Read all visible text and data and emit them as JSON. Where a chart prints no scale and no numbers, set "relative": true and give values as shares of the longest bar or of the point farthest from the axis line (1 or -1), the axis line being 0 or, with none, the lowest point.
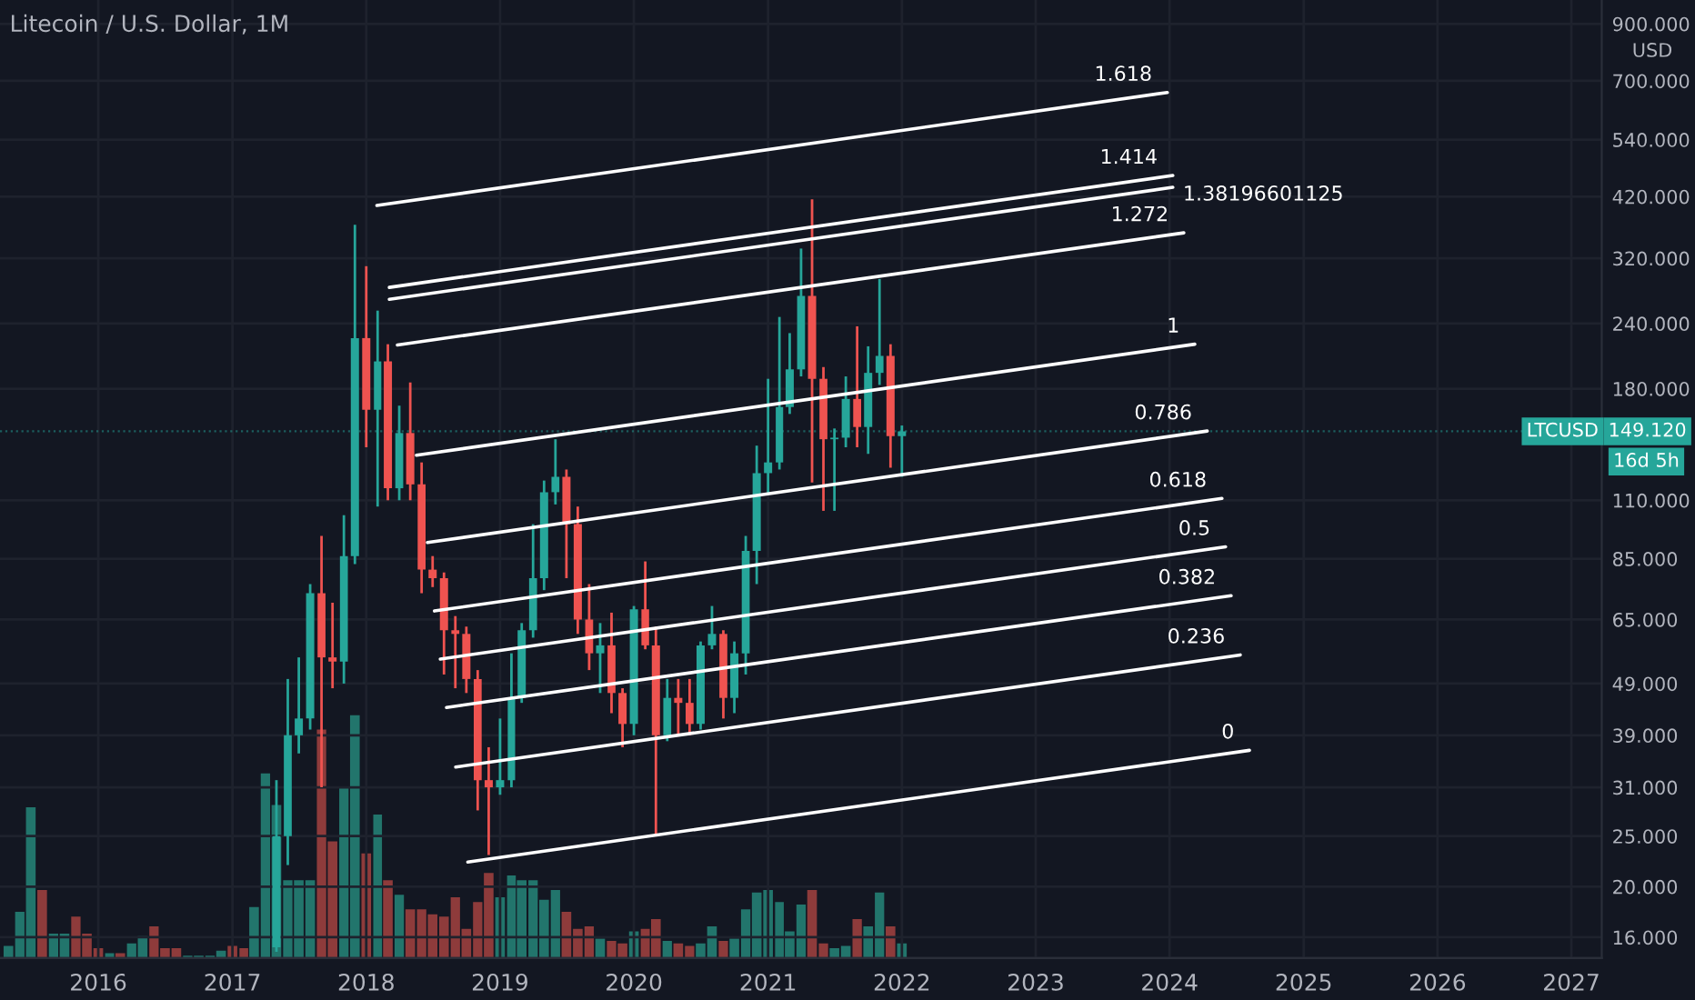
{
  "chart_data": [
    {
      "type": "candlestick",
      "title": "Litecoin / U.S. Dollar, 1M",
      "ylabel": "USD",
      "log": "y",
      "grid": true,
      "x": [
        "2017-05",
        "2017-06",
        "2017-07",
        "2017-08",
        "2017-09",
        "2017-10",
        "2017-11",
        "2017-12",
        "2018-01",
        "2018-02",
        "2018-03",
        "2018-04",
        "2018-05",
        "2018-06",
        "2018-07",
        "2018-08",
        "2018-09",
        "2018-10",
        "2018-11",
        "2018-12",
        "2019-01",
        "2019-02",
        "2019-03",
        "2019-04",
        "2019-05",
        "2019-06",
        "2019-07",
        "2019-08",
        "2019-09",
        "2019-10",
        "2019-11",
        "2019-12",
        "2020-01",
        "2020-02",
        "2020-03",
        "2020-04",
        "2020-05",
        "2020-06",
        "2020-07",
        "2020-08",
        "2020-09",
        "2020-10",
        "2020-11",
        "2020-12",
        "2021-01",
        "2021-02",
        "2021-03",
        "2021-04",
        "2021-05",
        "2021-06",
        "2021-07",
        "2021-08",
        "2021-09",
        "2021-10",
        "2021-11",
        "2021-12",
        "2022-01"
      ],
      "ohlc": [
        [
          15.3,
          32,
          15,
          25
        ],
        [
          25,
          50,
          22,
          39
        ],
        [
          39,
          55,
          36,
          42
        ],
        [
          42,
          76,
          40,
          73
        ],
        [
          73,
          94,
          31,
          55
        ],
        [
          55,
          70,
          48,
          54
        ],
        [
          54,
          103,
          49,
          86
        ],
        [
          86,
          371,
          83,
          225
        ],
        [
          225,
          309,
          139,
          164
        ],
        [
          164,
          254,
          107,
          203
        ],
        [
          203,
          219,
          110,
          116
        ],
        [
          116,
          167,
          110,
          148
        ],
        [
          148,
          185,
          110,
          118
        ],
        [
          118,
          130,
          73,
          81
        ],
        [
          81,
          86,
          75,
          78
        ],
        [
          78,
          80,
          51,
          62
        ],
        [
          62,
          66,
          48,
          61
        ],
        [
          61,
          63,
          47,
          50
        ],
        [
          50,
          52,
          28,
          32
        ],
        [
          32,
          37,
          23,
          31
        ],
        [
          31,
          42,
          30,
          32
        ],
        [
          32,
          56,
          31,
          46
        ],
        [
          46,
          64,
          45,
          62
        ],
        [
          62,
          99,
          60,
          78
        ],
        [
          78,
          120,
          74,
          114
        ],
        [
          114,
          144,
          108,
          122
        ],
        [
          122,
          126,
          78,
          99
        ],
        [
          99,
          107,
          61,
          65
        ],
        [
          65,
          76,
          52,
          56
        ],
        [
          56,
          64,
          47,
          58
        ],
        [
          58,
          67,
          43,
          47
        ],
        [
          47,
          48,
          37,
          41
        ],
        [
          41,
          69,
          39,
          68
        ],
        [
          68,
          84,
          57,
          58
        ],
        [
          58,
          63,
          25,
          39
        ],
        [
          39,
          50,
          38,
          46
        ],
        [
          46,
          50,
          39,
          45
        ],
        [
          45,
          50,
          39,
          41
        ],
        [
          41,
          59,
          40,
          58
        ],
        [
          58,
          69,
          57,
          61
        ],
        [
          61,
          62,
          42,
          46
        ],
        [
          46,
          59,
          43,
          56
        ],
        [
          56,
          94,
          51,
          88
        ],
        [
          88,
          140,
          76,
          124
        ],
        [
          124,
          188,
          113,
          130
        ],
        [
          130,
          247,
          126,
          166
        ],
        [
          166,
          230,
          161,
          196
        ],
        [
          196,
          334,
          190,
          271
        ],
        [
          271,
          415,
          119,
          188
        ],
        [
          188,
          198,
          105,
          144
        ],
        [
          144,
          151,
          105,
          145
        ],
        [
          145,
          190,
          139,
          172
        ],
        [
          172,
          237,
          139,
          152
        ],
        [
          152,
          217,
          135,
          193
        ],
        [
          193,
          292,
          183,
          208
        ],
        [
          208,
          219,
          127,
          146
        ],
        [
          146,
          153,
          122,
          149.12
        ]
      ],
      "colors": [
        "#26a69a",
        "#26a69a",
        "#26a69a",
        "#26a69a",
        "#ef5350",
        "#ef5350",
        "#26a69a",
        "#26a69a",
        "#ef5350",
        "#26a69a",
        "#ef5350",
        "#26a69a",
        "#ef5350",
        "#ef5350",
        "#ef5350",
        "#ef5350",
        "#ef5350",
        "#ef5350",
        "#ef5350",
        "#ef5350",
        "#26a69a",
        "#26a69a",
        "#26a69a",
        "#26a69a",
        "#26a69a",
        "#26a69a",
        "#ef5350",
        "#ef5350",
        "#ef5350",
        "#26a69a",
        "#ef5350",
        "#ef5350",
        "#26a69a",
        "#ef5350",
        "#ef5350",
        "#26a69a",
        "#ef5350",
        "#ef5350",
        "#26a69a",
        "#26a69a",
        "#ef5350",
        "#26a69a",
        "#26a69a",
        "#26a69a",
        "#26a69a",
        "#26a69a",
        "#26a69a",
        "#26a69a",
        "#ef5350",
        "#ef5350",
        "#26a69a",
        "#26a69a",
        "#ef5350",
        "#26a69a",
        "#26a69a",
        "#ef5350",
        "#26a69a"
      ],
      "series": [
        {
          "type": "line",
          "name": "0",
          "color": "#ffffff",
          "x": [
            "2018-10-05",
            "2024-08-06"
          ],
          "values": [
            22.3,
            36.5
          ]
        },
        {
          "type": "line",
          "name": "0.236",
          "color": "#ffffff",
          "x": [
            "2018-09-02",
            "2024-07-12"
          ],
          "values": [
            33.9,
            55.6
          ]
        },
        {
          "type": "line",
          "name": "0.382",
          "color": "#ffffff",
          "x": [
            "2018-08-08",
            "2024-06-17"
          ],
          "values": [
            44.1,
            72.2
          ]
        },
        {
          "type": "line",
          "name": "0.5",
          "color": "#ffffff",
          "x": [
            "2018-07-22",
            "2024-06-02"
          ],
          "values": [
            54.6,
            89.6
          ]
        },
        {
          "type": "line",
          "name": "0.618",
          "color": "#ffffff",
          "x": [
            "2018-07-06",
            "2024-05-23"
          ],
          "values": [
            67.5,
            110.9
          ]
        },
        {
          "type": "line",
          "name": "0.786",
          "color": "#ffffff",
          "x": [
            "2018-06-17",
            "2024-04-13"
          ],
          "values": [
            91.3,
            149.3
          ]
        },
        {
          "type": "line",
          "name": "1",
          "color": "#ffffff",
          "x": [
            "2018-05-18",
            "2024-03-10"
          ],
          "values": [
            134.2,
            219
          ]
        },
        {
          "type": "line",
          "name": "1.272",
          "color": "#ffffff",
          "x": [
            "2018-03-27",
            "2024-02-09"
          ],
          "values": [
            218.3,
            358
          ]
        },
        {
          "type": "line",
          "name": "1.38196601125",
          "color": "#ffffff",
          "x": [
            "2018-03-05",
            "2024-01-10"
          ],
          "values": [
            267,
            437.6
          ]
        },
        {
          "type": "line",
          "name": "1.414",
          "color": "#ffffff",
          "x": [
            "2018-03-05",
            "2024-01-10"
          ],
          "values": [
            281.4,
            461
          ]
        },
        {
          "type": "line",
          "name": "1.618",
          "color": "#ffffff",
          "x": [
            "2018-01-30",
            "2023-12-26"
          ],
          "values": [
            403.9,
            665
          ]
        }
      ],
      "xlim": [
        "2015-04-08",
        "2027-03-25"
      ],
      "xticks": [
        {
          "value": "2016-01-01",
          "label": "2016"
        },
        {
          "value": "2017-01-01",
          "label": "2017"
        },
        {
          "value": "2018-01-01",
          "label": "2018"
        },
        {
          "value": "2019-01-01",
          "label": "2019"
        },
        {
          "value": "2020-01-01",
          "label": "2020"
        },
        {
          "value": "2021-01-01",
          "label": "2021"
        },
        {
          "value": "2022-01-01",
          "label": "2022"
        },
        {
          "value": "2023-01-01",
          "label": "2023"
        },
        {
          "value": "2024-01-01",
          "label": "2024"
        },
        {
          "value": "2025-01-01",
          "label": "2025"
        },
        {
          "value": "2026-01-01",
          "label": "2026"
        },
        {
          "value": "2027-01-01",
          "label": "2027"
        }
      ],
      "ylim": [
        14.6,
        1000
      ],
      "yticks": [
        {
          "value": 16,
          "label": "16.000"
        },
        {
          "value": 20,
          "label": "20.000"
        },
        {
          "value": 25,
          "label": "25.000"
        },
        {
          "value": 31,
          "label": "31.000"
        },
        {
          "value": 39,
          "label": "39.000"
        },
        {
          "value": 49,
          "label": "49.000"
        },
        {
          "value": 65,
          "label": "65.000"
        },
        {
          "value": 85,
          "label": "85.000"
        },
        {
          "value": 110,
          "label": "110.000"
        },
        {
          "value": 180,
          "label": "180.000"
        },
        {
          "value": 240,
          "label": "240.000"
        },
        {
          "value": 320,
          "label": "320.000"
        },
        {
          "value": 420,
          "label": "420.000"
        },
        {
          "value": 540,
          "label": "540.000"
        },
        {
          "value": 700,
          "label": "700.000"
        },
        {
          "value": 900,
          "label": "900.000"
        }
      ],
      "ref_lines": [
        {
          "axis": "y",
          "value": 149.12,
          "label": "149.120",
          "color": "#26a69a",
          "line_style": "dotted"
        }
      ],
      "annotations": [
        {
          "text": "LTCUSD",
          "y": 149.12
        },
        "16d 5h"
      ]
    },
    {
      "type": "bar",
      "relative": true,
      "tick_labels": false,
      "xlim": [
        "2015-04-08",
        "2027-03-25"
      ],
      "x": [
        "2015-05",
        "2015-06",
        "2015-07",
        "2015-08",
        "2015-09",
        "2015-10",
        "2015-11",
        "2015-12",
        "2016-01",
        "2016-02",
        "2016-03",
        "2016-04",
        "2016-05",
        "2016-06",
        "2016-07",
        "2016-08",
        "2016-09",
        "2016-10",
        "2016-11",
        "2016-12",
        "2017-01",
        "2017-02",
        "2017-03",
        "2017-04",
        "2017-05",
        "2017-06",
        "2017-07",
        "2017-08",
        "2017-09",
        "2017-10",
        "2017-11",
        "2017-12",
        "2018-01",
        "2018-02",
        "2018-03",
        "2018-04",
        "2018-05",
        "2018-06",
        "2018-07",
        "2018-08",
        "2018-09",
        "2018-10",
        "2018-11",
        "2018-12",
        "2019-01",
        "2019-02",
        "2019-03",
        "2019-04",
        "2019-05",
        "2019-06",
        "2019-07",
        "2019-08",
        "2019-09",
        "2019-10",
        "2019-11",
        "2019-12",
        "2020-01",
        "2020-02",
        "2020-03",
        "2020-04",
        "2020-05",
        "2020-06",
        "2020-07",
        "2020-08",
        "2020-09",
        "2020-10",
        "2020-11",
        "2020-12",
        "2021-01",
        "2021-02",
        "2021-03",
        "2021-04",
        "2021-05",
        "2021-06",
        "2021-07",
        "2021-08",
        "2021-09",
        "2021-10",
        "2021-11",
        "2021-12",
        "2022-01"
      ],
      "values": [
        0.05,
        0.19,
        0.62,
        0.28,
        0.1,
        0.1,
        0.17,
        0.1,
        0.04,
        0.02,
        0.02,
        0.06,
        0.09,
        0.13,
        0.04,
        0.04,
        0.01,
        0.01,
        0.01,
        0.03,
        0.05,
        0.04,
        0.21,
        0.76,
        0.63,
        0.32,
        0.32,
        0.32,
        0.94,
        0.48,
        0.7,
        1,
        0.43,
        0.59,
        0.32,
        0.26,
        0.2,
        0.2,
        0.18,
        0.17,
        0.25,
        0.12,
        0.23,
        0.35,
        0.25,
        0.34,
        0.32,
        0.32,
        0.24,
        0.28,
        0.19,
        0.12,
        0.13,
        0.08,
        0.07,
        0.06,
        0.11,
        0.12,
        0.16,
        0.07,
        0.06,
        0.05,
        0.06,
        0.13,
        0.07,
        0.08,
        0.2,
        0.27,
        0.28,
        0.23,
        0.11,
        0.22,
        0.28,
        0.06,
        0.04,
        0.05,
        0.16,
        0.13,
        0.27,
        0.13,
        0.06
      ],
      "colors": [
        "#22756c",
        "#22756c",
        "#22756c",
        "#8e3b3b",
        "#22756c",
        "#22756c",
        "#8e3b3b",
        "#8e3b3b",
        "#8e3b3b",
        "#22756c",
        "#8e3b3b",
        "#22756c",
        "#22756c",
        "#8e3b3b",
        "#8e3b3b",
        "#8e3b3b",
        "#22756c",
        "#22756c",
        "#22756c",
        "#22756c",
        "#8e3b3b",
        "#8e3b3b",
        "#22756c",
        "#22756c",
        "#22756c",
        "#22756c",
        "#22756c",
        "#22756c",
        "#8e3b3b",
        "#8e3b3b",
        "#22756c",
        "#22756c",
        "#8e3b3b",
        "#22756c",
        "#8e3b3b",
        "#22756c",
        "#8e3b3b",
        "#8e3b3b",
        "#8e3b3b",
        "#8e3b3b",
        "#8e3b3b",
        "#8e3b3b",
        "#8e3b3b",
        "#8e3b3b",
        "#22756c",
        "#22756c",
        "#22756c",
        "#22756c",
        "#22756c",
        "#22756c",
        "#8e3b3b",
        "#8e3b3b",
        "#8e3b3b",
        "#22756c",
        "#8e3b3b",
        "#8e3b3b",
        "#22756c",
        "#8e3b3b",
        "#8e3b3b",
        "#22756c",
        "#8e3b3b",
        "#8e3b3b",
        "#22756c",
        "#22756c",
        "#8e3b3b",
        "#22756c",
        "#22756c",
        "#22756c",
        "#22756c",
        "#22756c",
        "#22756c",
        "#22756c",
        "#8e3b3b",
        "#8e3b3b",
        "#22756c",
        "#22756c",
        "#8e3b3b",
        "#22756c",
        "#22756c",
        "#8e3b3b",
        "#22756c"
      ]
    }
  ]
}
